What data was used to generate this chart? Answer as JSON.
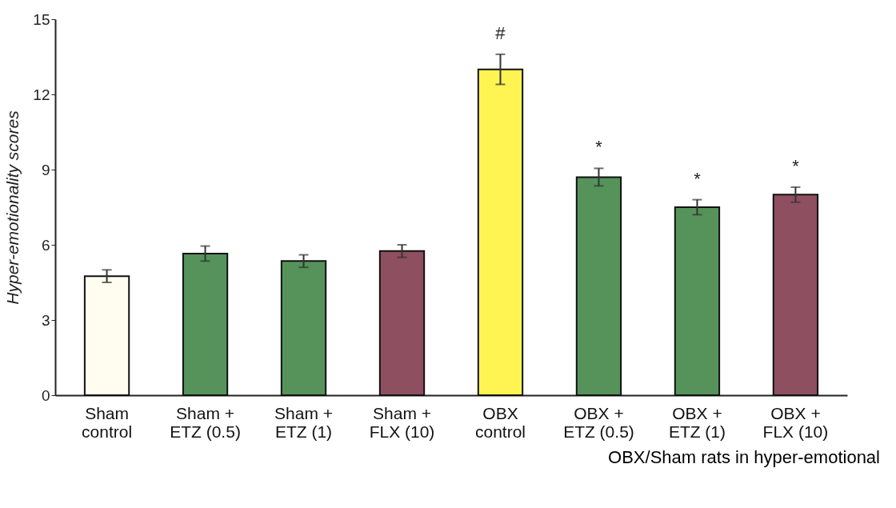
{
  "chart_data": {
    "type": "bar",
    "ylabel": "Hyper-emotionality scores",
    "categories": [
      "Sham\ncontrol",
      "Sham +\nETZ (0.5)",
      "Sham +\nETZ (1)",
      "Sham +\nFLX (10)",
      "OBX\ncontrol",
      "OBX +\nETZ (0.5)",
      "OBX +\nETZ (1)",
      "OBX +\nFLX (10)"
    ],
    "values": [
      4.75,
      5.65,
      5.35,
      5.75,
      13.0,
      8.7,
      7.5,
      8.0
    ],
    "errors": [
      0.25,
      0.3,
      0.25,
      0.25,
      0.6,
      0.35,
      0.3,
      0.3
    ],
    "colors": [
      "#fffdf0",
      "#55935a",
      "#55935a",
      "#8e4f60",
      "#fff451",
      "#55935a",
      "#55935a",
      "#8e4f60"
    ],
    "ylim": [
      0,
      15
    ],
    "yticks": [
      0,
      3,
      6,
      9,
      12,
      15
    ],
    "grid": false,
    "value_labels": [
      null,
      null,
      null,
      null,
      "#",
      "*",
      "*",
      "*"
    ],
    "annotations": [
      "OBX/Sham rats in hyper-emotional"
    ]
  }
}
